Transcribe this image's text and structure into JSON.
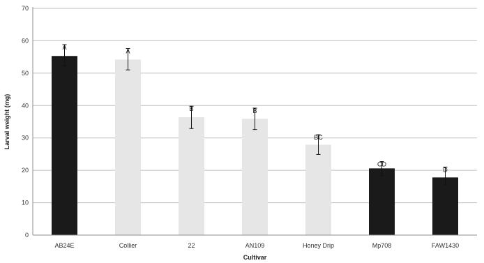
{
  "chart_data": {
    "type": "bar",
    "xlabel": "Cultivar",
    "ylabel": "Larval weight (mg)",
    "ylim": [
      0,
      70
    ],
    "yticks": [
      0,
      10,
      20,
      30,
      40,
      50,
      60,
      70
    ],
    "grid": true,
    "legend": "none",
    "categories": [
      "AB24E",
      "Collier",
      "22",
      "AN109",
      "Honey Drip",
      "Mp708",
      "FAW1430"
    ],
    "values": [
      55.3,
      54.2,
      36.4,
      35.9,
      27.9,
      20.6,
      17.8
    ],
    "error_low": [
      52.3,
      51.0,
      32.9,
      32.6,
      24.9,
      18.3,
      15.5
    ],
    "error_high": [
      58.8,
      57.6,
      39.8,
      39.2,
      31.0,
      22.7,
      21.0
    ],
    "significance_labels": [
      "A",
      "A",
      "B",
      "B",
      "BC",
      "CD",
      "D"
    ],
    "bar_colors": [
      "#1a1a1a",
      "#e6e6e6",
      "#e6e6e6",
      "#e6e6e6",
      "#e6e6e6",
      "#1a1a1a",
      "#1a1a1a"
    ]
  }
}
